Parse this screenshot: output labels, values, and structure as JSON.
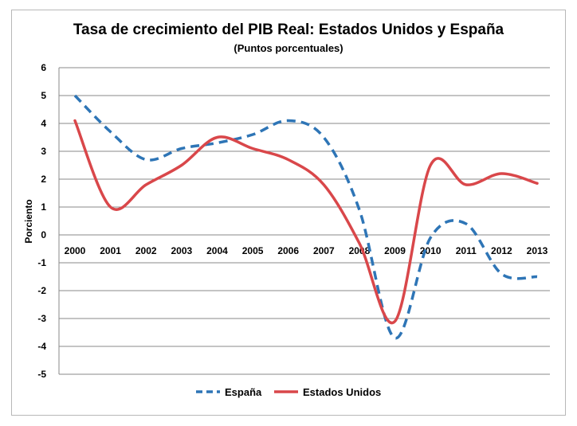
{
  "chart_data": {
    "type": "line",
    "title": "Tasa de crecimiento del PIB Real: Estados Unidos y España",
    "subtitle": "(Puntos porcentuales)",
    "ylabel": "Porciento",
    "xlabel": "",
    "ylim": [
      -5,
      6
    ],
    "yticks": [
      6,
      5,
      4,
      3,
      2,
      1,
      0,
      -1,
      -2,
      -3,
      -4,
      -5
    ],
    "grid": true,
    "legend_position": "bottom",
    "categories": [
      "2000",
      "2001",
      "2002",
      "2003",
      "2004",
      "2005",
      "2006",
      "2007",
      "2008",
      "2009",
      "2010",
      "2011",
      "2012",
      "2013"
    ],
    "series": [
      {
        "name": "España",
        "color": "#2e75b6",
        "style": "dashed",
        "values": [
          5.0,
          3.7,
          2.7,
          3.1,
          3.3,
          3.6,
          4.1,
          3.5,
          0.9,
          -3.7,
          -0.1,
          0.4,
          -1.4,
          -1.5
        ]
      },
      {
        "name": "Estados Unidos",
        "color": "#d9474a",
        "style": "solid",
        "values": [
          4.1,
          1.0,
          1.8,
          2.5,
          3.5,
          3.1,
          2.7,
          1.8,
          -0.3,
          -3.1,
          2.5,
          1.8,
          2.2,
          1.85
        ]
      }
    ]
  }
}
